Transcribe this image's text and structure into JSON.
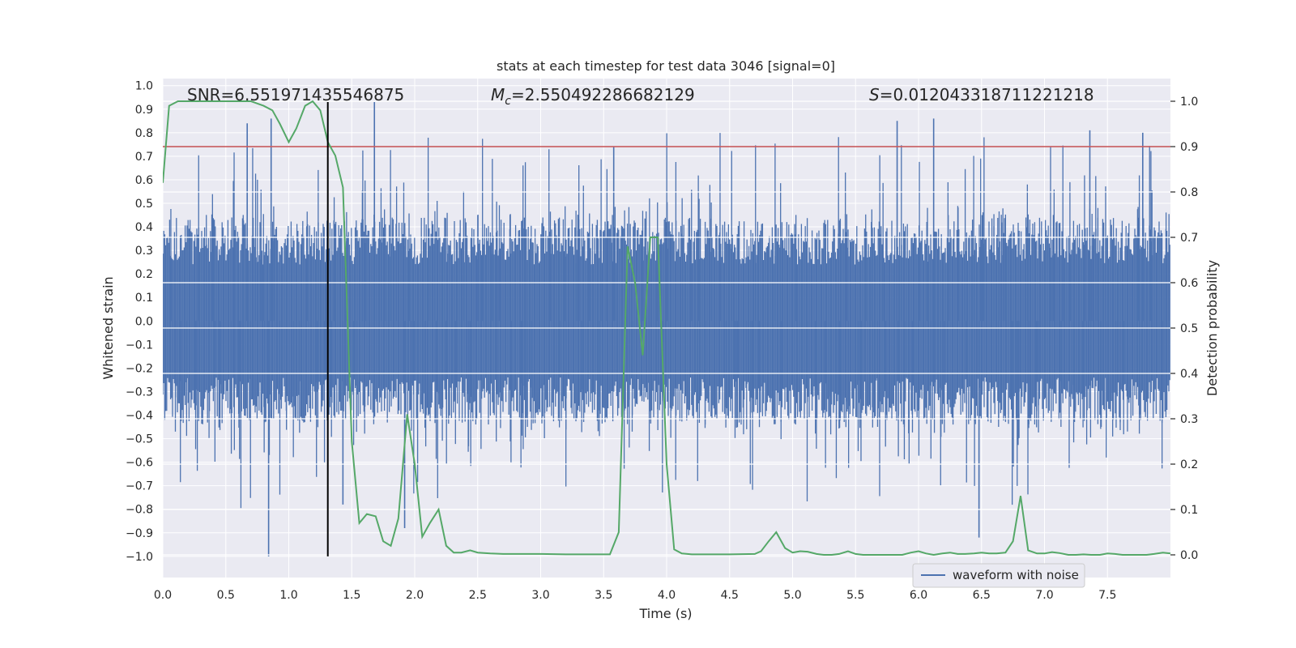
{
  "chart_data": {
    "type": "line",
    "title": "stats at each timestep for test data 3046 [signal=0]",
    "xlabel": "Time (s)",
    "ylabel_left": "Whitened strain",
    "ylabel_right": "Detection probability",
    "xlim": [
      0.0,
      8.0
    ],
    "ylim_left": [
      -1.09,
      1.03
    ],
    "ylim_right": [
      -0.05,
      1.05
    ],
    "x_ticks": [
      "0.0",
      "0.5",
      "1.0",
      "1.5",
      "2.0",
      "2.5",
      "3.0",
      "3.5",
      "4.0",
      "4.5",
      "5.0",
      "5.5",
      "6.0",
      "6.5",
      "7.0",
      "7.5"
    ],
    "y_ticks_left": [
      "1.0",
      "0.9",
      "0.8",
      "0.7",
      "0.6",
      "0.5",
      "0.4",
      "0.3",
      "0.2",
      "0.1",
      "0.0",
      "-0.1",
      "-0.2",
      "-0.3",
      "-0.4",
      "-0.5",
      "-0.6",
      "-0.7",
      "-0.8",
      "-0.9",
      "-1.0"
    ],
    "y_ticks_right": [
      "1.0",
      "0.9",
      "0.8",
      "0.7",
      "0.6",
      "0.5",
      "0.4",
      "0.3",
      "0.2",
      "0.1",
      "0.0"
    ],
    "grid": true,
    "legend_position": "bottom-right",
    "annotations": {
      "snr": "SNR=6.551971435546875",
      "mc_prefix": "M",
      "mc_sub": "c",
      "mc_value": "=2.550492286682129",
      "s_prefix": "S",
      "s_value": "=0.012043318711221218"
    },
    "vertical_marker_x": 1.31,
    "threshold": {
      "axis": "right",
      "value": 0.9,
      "color": "#c44e52"
    },
    "series": [
      {
        "name": "waveform with noise",
        "axis": "left",
        "color": "#4c72b0",
        "note": "dense whitened-noise waveform, approx symmetric between -0.45 and 0.45 with spikes",
        "notable_spikes": [
          {
            "x": 0.67,
            "y": 0.84
          },
          {
            "x": 0.84,
            "y": -1.0
          },
          {
            "x": 0.86,
            "y": 0.86
          },
          {
            "x": 1.68,
            "y": 0.93
          },
          {
            "x": 1.43,
            "y": -0.78
          },
          {
            "x": 1.92,
            "y": -0.88
          },
          {
            "x": 3.58,
            "y": 0.74
          },
          {
            "x": 5.83,
            "y": 0.85
          },
          {
            "x": 6.12,
            "y": 0.86
          },
          {
            "x": 6.48,
            "y": -0.92
          },
          {
            "x": 7.36,
            "y": 0.81
          },
          {
            "x": 7.78,
            "y": 0.8
          }
        ]
      },
      {
        "name": "",
        "axis": "right",
        "color": "#55a868",
        "x": [
          0.0,
          0.05,
          0.12,
          0.2,
          0.3,
          0.4,
          0.5,
          0.6,
          0.7,
          0.8,
          0.87,
          0.93,
          1.0,
          1.06,
          1.13,
          1.19,
          1.25,
          1.31,
          1.37,
          1.43,
          1.5,
          1.56,
          1.62,
          1.69,
          1.75,
          1.81,
          1.87,
          1.94,
          2.0,
          2.06,
          2.12,
          2.19,
          2.25,
          2.31,
          2.37,
          2.44,
          2.5,
          2.6,
          2.7,
          2.8,
          2.9,
          3.0,
          3.2,
          3.4,
          3.55,
          3.62,
          3.69,
          3.75,
          3.81,
          3.87,
          3.93,
          4.0,
          4.06,
          4.12,
          4.2,
          4.3,
          4.5,
          4.7,
          4.75,
          4.81,
          4.87,
          4.94,
          5.0,
          5.06,
          5.12,
          5.19,
          5.25,
          5.31,
          5.37,
          5.44,
          5.5,
          5.56,
          5.62,
          5.69,
          5.75,
          5.81,
          5.87,
          5.94,
          6.0,
          6.06,
          6.12,
          6.19,
          6.25,
          6.31,
          6.37,
          6.44,
          6.5,
          6.56,
          6.62,
          6.69,
          6.75,
          6.81,
          6.87,
          6.94,
          7.0,
          7.06,
          7.12,
          7.19,
          7.25,
          7.31,
          7.37,
          7.44,
          7.5,
          7.56,
          7.62,
          7.69,
          7.75,
          7.81,
          7.87,
          7.94,
          8.0
        ],
        "y": [
          0.82,
          0.99,
          1.0,
          1.0,
          1.0,
          1.0,
          1.0,
          1.0,
          1.0,
          0.99,
          0.98,
          0.95,
          0.91,
          0.94,
          0.99,
          1.0,
          0.98,
          0.91,
          0.88,
          0.81,
          0.25,
          0.07,
          0.09,
          0.085,
          0.03,
          0.02,
          0.08,
          0.31,
          0.2,
          0.04,
          0.07,
          0.1,
          0.02,
          0.005,
          0.005,
          0.01,
          0.005,
          0.003,
          0.002,
          0.002,
          0.002,
          0.002,
          0.001,
          0.001,
          0.001,
          0.05,
          0.68,
          0.6,
          0.44,
          0.7,
          0.7,
          0.2,
          0.012,
          0.003,
          0.001,
          0.001,
          0.001,
          0.002,
          0.008,
          0.03,
          0.05,
          0.015,
          0.005,
          0.008,
          0.007,
          0.002,
          0.0,
          0.0,
          0.002,
          0.008,
          0.002,
          0.0,
          0.0,
          0.0,
          0.0,
          0.0,
          0.0,
          0.005,
          0.008,
          0.003,
          0.0,
          0.003,
          0.005,
          0.002,
          0.002,
          0.003,
          0.005,
          0.003,
          0.003,
          0.005,
          0.03,
          0.13,
          0.01,
          0.003,
          0.003,
          0.006,
          0.004,
          0.0,
          0.0,
          0.001,
          0.0,
          0.0,
          0.003,
          0.002,
          0.0,
          0.0,
          0.0,
          0.0,
          0.002,
          0.005,
          0.003
        ]
      }
    ]
  }
}
